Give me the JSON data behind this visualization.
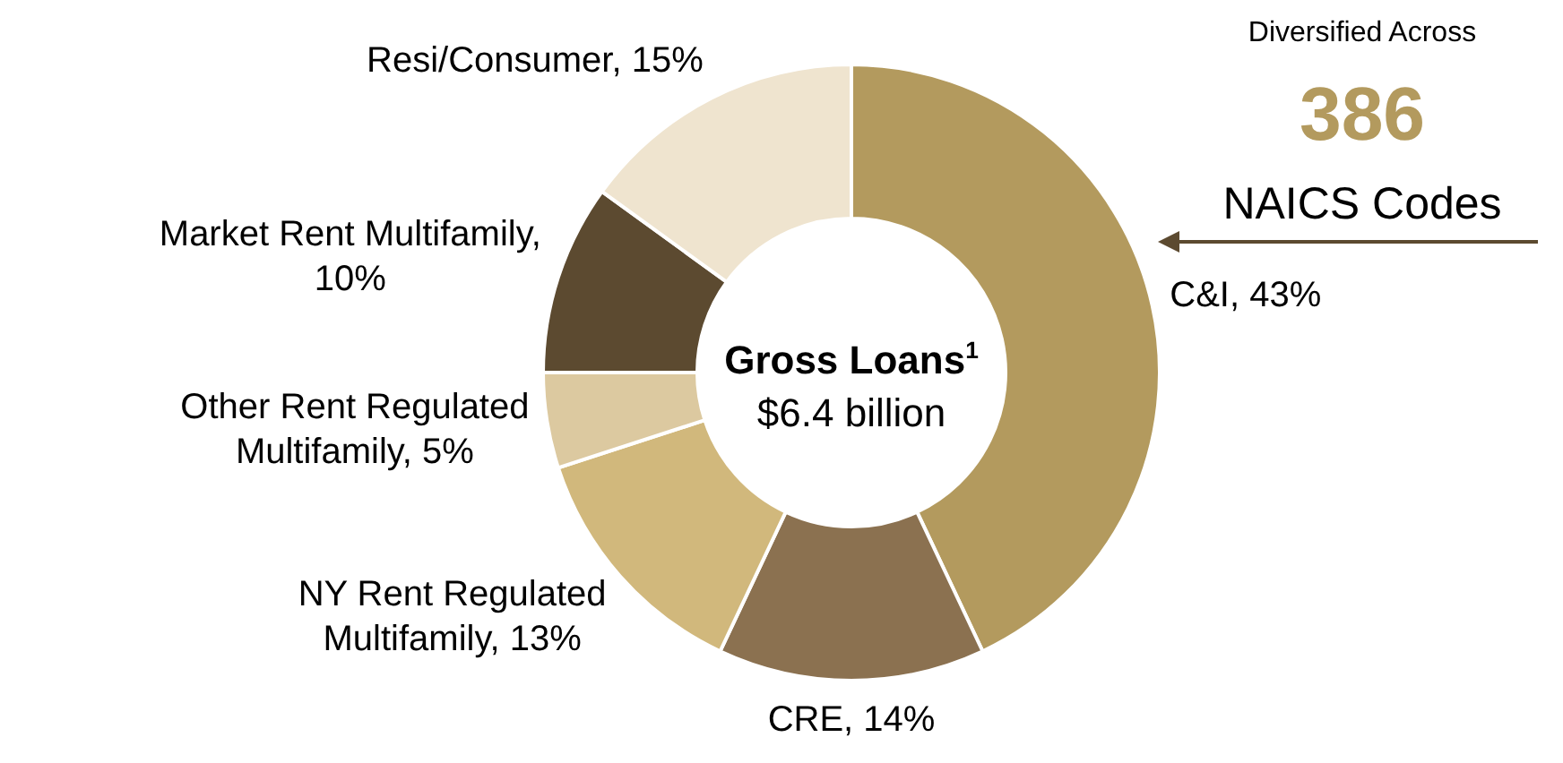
{
  "chart_data": {
    "type": "donut",
    "categories": [
      "C&I, 43%",
      "CRE, 14%",
      "NY Rent Regulated Multifamily, 13%",
      "Other Rent Regulated Multifamily, 5%",
      "Market Rent Multifamily, 10%",
      "Resi/Consumer, 15%"
    ],
    "values": [
      43,
      14,
      13,
      5,
      10,
      15
    ],
    "colors": [
      "#b39a5e",
      "#8b7150",
      "#d1b87c",
      "#dcc9a0",
      "#5c4a30",
      "#efe4cf"
    ],
    "annotations": [
      "Gross Loans$^{1}$",
      "$6.4 billion",
      "Diversified Across",
      "386",
      "NAICS Codes"
    ],
    "legend": false
  }
}
